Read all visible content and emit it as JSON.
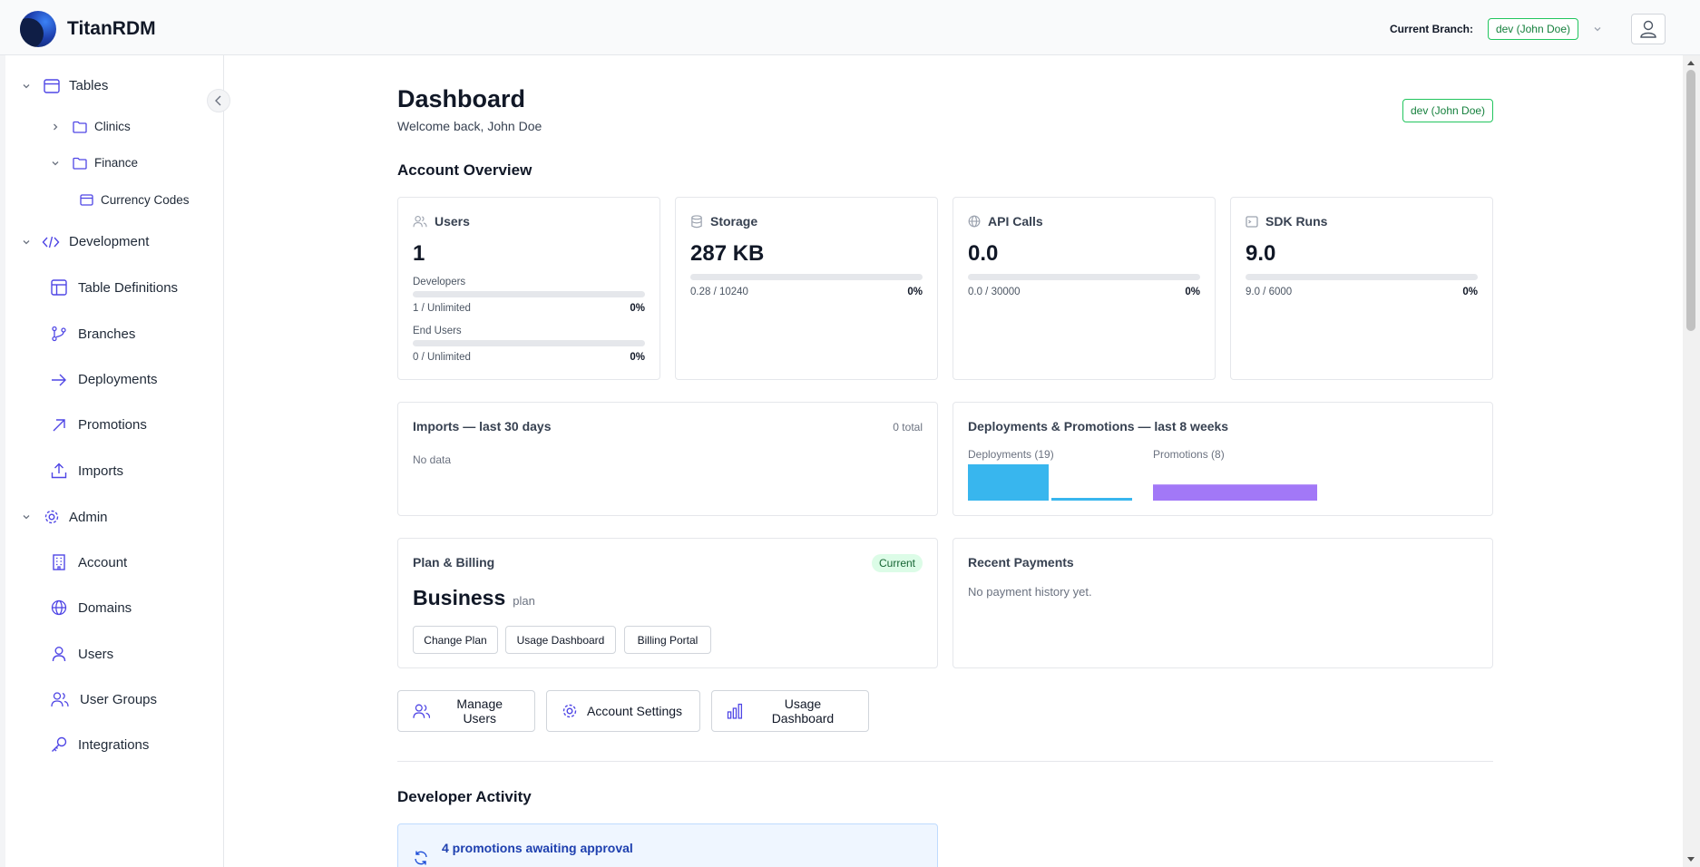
{
  "app": {
    "name": "TitanRDM"
  },
  "header": {
    "branch_label": "Current Branch:",
    "branch_value": "dev (John Doe)"
  },
  "sidebar": {
    "tables": {
      "label": "Tables"
    },
    "clinics": {
      "label": "Clinics"
    },
    "finance": {
      "label": "Finance"
    },
    "currency_codes": {
      "label": "Currency Codes"
    },
    "development": {
      "label": "Development"
    },
    "table_definitions": {
      "label": "Table Definitions"
    },
    "branches": {
      "label": "Branches"
    },
    "deployments": {
      "label": "Deployments"
    },
    "promotions": {
      "label": "Promotions"
    },
    "imports": {
      "label": "Imports"
    },
    "admin": {
      "label": "Admin"
    },
    "account": {
      "label": "Account"
    },
    "domains": {
      "label": "Domains"
    },
    "users": {
      "label": "Users"
    },
    "user_groups": {
      "label": "User Groups"
    },
    "integrations": {
      "label": "Integrations"
    }
  },
  "page": {
    "title": "Dashboard",
    "welcome": "Welcome back, John Doe",
    "branch_badge": "dev (John Doe)"
  },
  "overview": {
    "title": "Account Overview",
    "users": {
      "label": "Users",
      "value": "1",
      "developers": {
        "label": "Developers",
        "usage": "1 / Unlimited",
        "pct": "0%",
        "fraction": 0
      },
      "end_users": {
        "label": "End Users",
        "usage": "0 / Unlimited",
        "pct": "0%",
        "fraction": 0
      }
    },
    "storage": {
      "label": "Storage",
      "value": "287 KB",
      "usage": "0.28 / 10240",
      "pct": "0%",
      "fraction": 0
    },
    "api_calls": {
      "label": "API Calls",
      "value": "0.0",
      "usage": "0.0 / 30000",
      "pct": "0%",
      "fraction": 0
    },
    "sdk_runs": {
      "label": "SDK Runs",
      "value": "9.0",
      "usage": "9.0 / 6000",
      "pct": "0%",
      "fraction": 0
    }
  },
  "imports": {
    "title": "Imports — last 30 days",
    "total": "0 total",
    "empty": "No data"
  },
  "deploy_promo": {
    "title": "Deployments & Promotions — last 8 weeks",
    "deployments_label": "Deployments (19)",
    "promotions_label": "Promotions (8)",
    "chart_data": {
      "type": "bar",
      "series": [
        {
          "name": "Deployments (19)",
          "values": [
            18,
            1
          ],
          "color": "#38b6ee"
        },
        {
          "name": "Promotions (8)",
          "values": [
            8
          ],
          "color": "#a278f7"
        }
      ]
    }
  },
  "plan": {
    "title": "Plan & Billing",
    "badge": "Current",
    "name": "Business",
    "suffix": "plan",
    "change_plan": "Change Plan",
    "usage_dashboard": "Usage Dashboard",
    "billing_portal": "Billing Portal"
  },
  "payments": {
    "title": "Recent Payments",
    "empty": "No payment history yet."
  },
  "actions": {
    "manage_users": "Manage Users",
    "account_settings": "Account Settings",
    "usage_dashboard": "Usage Dashboard"
  },
  "activity": {
    "title": "Developer Activity",
    "promotions_awaiting": "4 promotions awaiting approval"
  },
  "colors": {
    "accent": "#6366f1",
    "green": "#22c55e",
    "deploy": "#38b6ee",
    "promo": "#a278f7"
  }
}
